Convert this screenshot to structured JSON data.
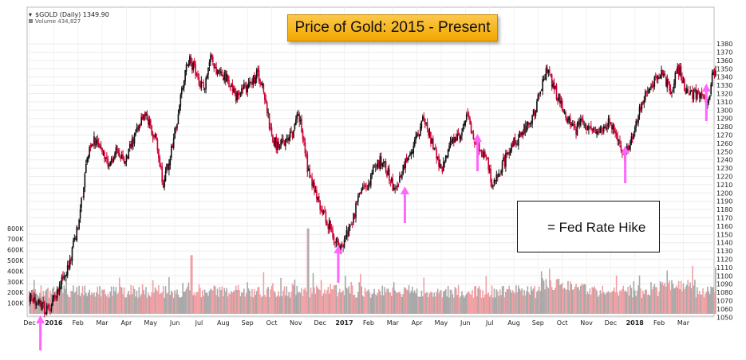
{
  "header": {
    "symbol": "$GOLD (Daily) 1349.90",
    "volume_label": "Volume 434,827"
  },
  "title_box": {
    "text": "Price of Gold: 2015 - Present"
  },
  "legend": {
    "label": "= Fed Rate Hike"
  },
  "colors": {
    "up": "#111111",
    "down": "#cc0033",
    "vol_up": "#a9a9a9",
    "vol_down": "#f0a0a4",
    "arrow": "#ff66ff"
  },
  "chart_data": {
    "type": "candlestick",
    "title": "Price of Gold: 2015 - Present",
    "x_ticks": [
      "Dec",
      "2016",
      "Feb",
      "Mar",
      "Apr",
      "May",
      "Jun",
      "Jul",
      "Aug",
      "Sep",
      "Oct",
      "Nov",
      "Dec",
      "2017",
      "Feb",
      "Mar",
      "Apr",
      "May",
      "Jun",
      "Jul",
      "Aug",
      "Sep",
      "Oct",
      "Nov",
      "Dec",
      "2018",
      "Feb",
      "Mar"
    ],
    "bold_x_ticks": [
      "2016",
      "2017",
      "2018"
    ],
    "y_ticks_price": [
      1050,
      1060,
      1070,
      1080,
      1090,
      1100,
      1110,
      1120,
      1130,
      1140,
      1150,
      1160,
      1170,
      1180,
      1190,
      1200,
      1210,
      1220,
      1230,
      1240,
      1250,
      1260,
      1270,
      1280,
      1290,
      1300,
      1310,
      1320,
      1330,
      1340,
      1350,
      1360,
      1370,
      1380
    ],
    "y_ticks_volume": [
      "100K",
      "200K",
      "300K",
      "400K",
      "500K",
      "600K",
      "700K",
      "800K"
    ],
    "price_path": [
      {
        "m": 0.0,
        "p": 1075
      },
      {
        "m": 0.5,
        "p": 1065
      },
      {
        "m": 0.8,
        "p": 1055
      },
      {
        "m": 1.2,
        "p": 1085
      },
      {
        "m": 1.6,
        "p": 1110
      },
      {
        "m": 2.0,
        "p": 1160
      },
      {
        "m": 2.3,
        "p": 1225
      },
      {
        "m": 2.6,
        "p": 1265
      },
      {
        "m": 3.0,
        "p": 1250
      },
      {
        "m": 3.3,
        "p": 1235
      },
      {
        "m": 3.6,
        "p": 1250
      },
      {
        "m": 4.0,
        "p": 1240
      },
      {
        "m": 4.4,
        "p": 1275
      },
      {
        "m": 4.8,
        "p": 1295
      },
      {
        "m": 5.0,
        "p": 1280
      },
      {
        "m": 5.3,
        "p": 1255
      },
      {
        "m": 5.5,
        "p": 1210
      },
      {
        "m": 5.8,
        "p": 1245
      },
      {
        "m": 6.1,
        "p": 1290
      },
      {
        "m": 6.3,
        "p": 1325
      },
      {
        "m": 6.6,
        "p": 1365
      },
      {
        "m": 6.9,
        "p": 1340
      },
      {
        "m": 7.2,
        "p": 1325
      },
      {
        "m": 7.5,
        "p": 1365
      },
      {
        "m": 7.8,
        "p": 1345
      },
      {
        "m": 8.1,
        "p": 1340
      },
      {
        "m": 8.5,
        "p": 1315
      },
      {
        "m": 8.8,
        "p": 1325
      },
      {
        "m": 9.1,
        "p": 1330
      },
      {
        "m": 9.4,
        "p": 1345
      },
      {
        "m": 9.7,
        "p": 1320
      },
      {
        "m": 10.0,
        "p": 1265
      },
      {
        "m": 10.3,
        "p": 1255
      },
      {
        "m": 10.6,
        "p": 1265
      },
      {
        "m": 10.9,
        "p": 1275
      },
      {
        "m": 11.1,
        "p": 1300
      },
      {
        "m": 11.3,
        "p": 1265
      },
      {
        "m": 11.5,
        "p": 1225
      },
      {
        "m": 11.8,
        "p": 1200
      },
      {
        "m": 12.1,
        "p": 1175
      },
      {
        "m": 12.5,
        "p": 1155
      },
      {
        "m": 12.8,
        "p": 1130
      },
      {
        "m": 13.0,
        "p": 1140
      },
      {
        "m": 13.3,
        "p": 1165
      },
      {
        "m": 13.6,
        "p": 1195
      },
      {
        "m": 13.9,
        "p": 1210
      },
      {
        "m": 14.2,
        "p": 1225
      },
      {
        "m": 14.5,
        "p": 1240
      },
      {
        "m": 14.8,
        "p": 1225
      },
      {
        "m": 15.1,
        "p": 1200
      },
      {
        "m": 15.4,
        "p": 1230
      },
      {
        "m": 15.7,
        "p": 1250
      },
      {
        "m": 16.0,
        "p": 1265
      },
      {
        "m": 16.2,
        "p": 1290
      },
      {
        "m": 16.5,
        "p": 1270
      },
      {
        "m": 16.8,
        "p": 1245
      },
      {
        "m": 17.0,
        "p": 1225
      },
      {
        "m": 17.3,
        "p": 1255
      },
      {
        "m": 17.6,
        "p": 1265
      },
      {
        "m": 17.9,
        "p": 1275
      },
      {
        "m": 18.1,
        "p": 1295
      },
      {
        "m": 18.3,
        "p": 1270
      },
      {
        "m": 18.6,
        "p": 1255
      },
      {
        "m": 18.9,
        "p": 1240
      },
      {
        "m": 19.1,
        "p": 1210
      },
      {
        "m": 19.4,
        "p": 1225
      },
      {
        "m": 19.7,
        "p": 1245
      },
      {
        "m": 20.0,
        "p": 1260
      },
      {
        "m": 20.3,
        "p": 1270
      },
      {
        "m": 20.6,
        "p": 1285
      },
      {
        "m": 20.9,
        "p": 1300
      },
      {
        "m": 21.1,
        "p": 1325
      },
      {
        "m": 21.4,
        "p": 1350
      },
      {
        "m": 21.6,
        "p": 1330
      },
      {
        "m": 21.9,
        "p": 1310
      },
      {
        "m": 22.2,
        "p": 1290
      },
      {
        "m": 22.5,
        "p": 1275
      },
      {
        "m": 22.8,
        "p": 1285
      },
      {
        "m": 23.1,
        "p": 1280
      },
      {
        "m": 23.4,
        "p": 1270
      },
      {
        "m": 23.7,
        "p": 1280
      },
      {
        "m": 24.0,
        "p": 1285
      },
      {
        "m": 24.3,
        "p": 1260
      },
      {
        "m": 24.5,
        "p": 1245
      },
      {
        "m": 24.8,
        "p": 1255
      },
      {
        "m": 25.1,
        "p": 1290
      },
      {
        "m": 25.4,
        "p": 1320
      },
      {
        "m": 25.7,
        "p": 1330
      },
      {
        "m": 26.0,
        "p": 1345
      },
      {
        "m": 26.3,
        "p": 1335
      },
      {
        "m": 26.5,
        "p": 1325
      },
      {
        "m": 26.8,
        "p": 1350
      },
      {
        "m": 27.1,
        "p": 1325
      },
      {
        "m": 27.4,
        "p": 1320
      },
      {
        "m": 27.7,
        "p": 1315
      },
      {
        "m": 28.0,
        "p": 1310
      },
      {
        "m": 28.2,
        "p": 1340
      },
      {
        "m": 28.35,
        "p": 1349.9
      }
    ],
    "fed_rate_hikes": [
      {
        "label": "Dec 2015",
        "m": 0.45
      },
      {
        "label": "Dec 2016",
        "m": 12.75
      },
      {
        "label": "Mar 2017",
        "m": 15.5
      },
      {
        "label": "Jun 2017",
        "m": 18.5
      },
      {
        "label": "Dec 2017",
        "m": 24.6
      },
      {
        "label": "Mar 2018",
        "m": 27.95
      }
    ],
    "last_price": 1349.9,
    "last_volume": 434827
  }
}
